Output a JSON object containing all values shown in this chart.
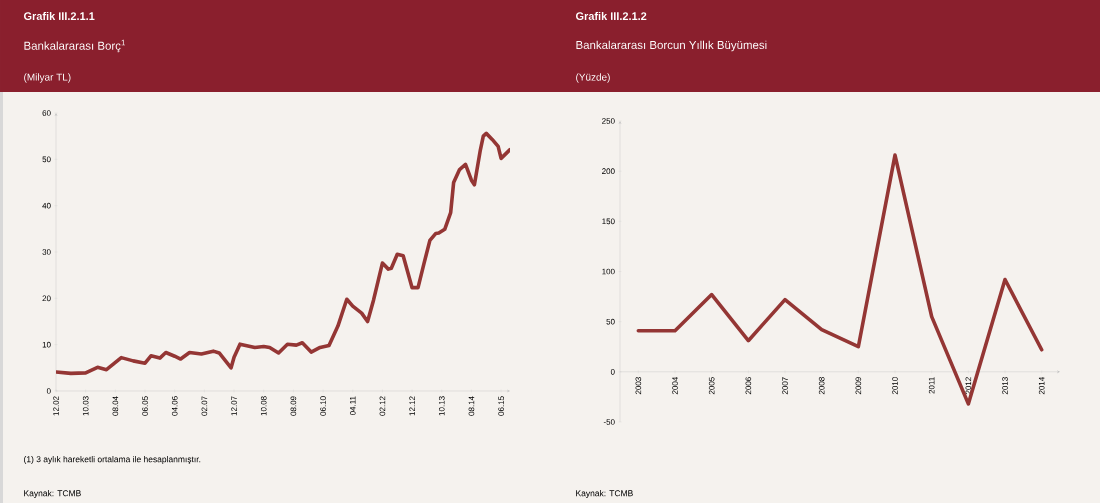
{
  "chart_data": [
    {
      "type": "line",
      "title": "Grafik III.2.1.1",
      "subtitle": "Bankalararası Borç$^{1}$",
      "ylabel": "(Milyar TL)",
      "color": "#943634",
      "x": [
        "2002-12",
        "2003-05",
        "2003-10",
        "2004-02",
        "2004-05",
        "2004-10",
        "2005-02",
        "2005-06",
        "2005-08",
        "2005-11",
        "2006-01",
        "2006-04",
        "2006-06",
        "2006-09",
        "2007-01",
        "2007-05",
        "2007-07",
        "2007-11",
        "2007-12",
        "2008-02",
        "2008-07",
        "2008-10",
        "2008-12",
        "2009-03",
        "2009-06",
        "2009-09",
        "2009-11",
        "2010-02",
        "2010-05",
        "2010-08",
        "2010-11",
        "2011-02",
        "2011-04",
        "2011-07",
        "2011-09",
        "2011-11",
        "2012-02",
        "2012-04",
        "2012-05",
        "2012-07",
        "2012-09",
        "2012-12",
        "2013-02",
        "2013-04",
        "2013-06",
        "2013-08",
        "2013-09",
        "2013-11",
        "2014-01",
        "2014-02",
        "2014-04",
        "2014-06",
        "2014-08",
        "2014-09",
        "2014-11",
        "2014-12",
        "2015-01",
        "2015-03",
        "2015-05",
        "2015-06",
        "2015-09"
      ],
      "values": [
        4.1,
        3.8,
        3.9,
        5.1,
        4.6,
        7.2,
        6.5,
        6.0,
        7.6,
        7.1,
        8.3,
        7.5,
        6.9,
        8.3,
        8.0,
        8.6,
        8.2,
        5.0,
        7.3,
        10.1,
        9.4,
        9.6,
        9.4,
        8.2,
        10.1,
        9.9,
        10.4,
        8.4,
        9.4,
        9.8,
        14.0,
        19.8,
        18.3,
        16.8,
        15.0,
        19.6,
        27.6,
        26.3,
        26.5,
        29.5,
        29.2,
        22.3,
        22.3,
        27.5,
        32.5,
        34.0,
        34.1,
        34.9,
        38.5,
        45.0,
        47.8,
        48.9,
        45.5,
        44.5,
        52.0,
        55.0,
        55.6,
        54.3,
        52.8,
        50.2,
        52.1
      ],
      "xlim": [
        "2002-12",
        "2015-09"
      ],
      "xticks": [
        {
          "value": "2002-12",
          "label": "12.02"
        },
        {
          "value": "2003-10",
          "label": "10.03"
        },
        {
          "value": "2004-08",
          "label": "08.04"
        },
        {
          "value": "2005-06",
          "label": "06.05"
        },
        {
          "value": "2006-04",
          "label": "04.06"
        },
        {
          "value": "2007-02",
          "label": "02.07"
        },
        {
          "value": "2007-12",
          "label": "12.07"
        },
        {
          "value": "2008-10",
          "label": "10.08"
        },
        {
          "value": "2009-08",
          "label": "08.09"
        },
        {
          "value": "2010-06",
          "label": "06.10"
        },
        {
          "value": "2011-04",
          "label": "04.11"
        },
        {
          "value": "2012-02",
          "label": "02.12"
        },
        {
          "value": "2012-12",
          "label": "12.12"
        },
        {
          "value": "2013-10",
          "label": "10.13"
        },
        {
          "value": "2014-08",
          "label": "08.14"
        },
        {
          "value": "2015-06",
          "label": "06.15"
        }
      ],
      "ylim": [
        0,
        60
      ],
      "yticks": [
        0,
        10,
        20,
        30,
        40,
        50,
        60
      ],
      "annotations": [
        "(1) 3 aylık hareketli ortalama ile hesaplanmıştır.",
        "Kaynak: TCMB"
      ]
    },
    {
      "type": "line",
      "title": "Grafik III.2.1.2",
      "subtitle": "Bankalararası Borcun Yıllık Büyümesi",
      "ylabel": "(Yüzde)",
      "color": "#943634",
      "categories": [
        "2003",
        "2004",
        "2005",
        "2006",
        "2007",
        "2008",
        "2009",
        "2010",
        "2011",
        "2012",
        "2013",
        "2014"
      ],
      "values": [
        41,
        41,
        77,
        31,
        72,
        42,
        25,
        216,
        55,
        -32,
        92,
        22
      ],
      "ylim": [
        -50,
        250
      ],
      "yticks": [
        -50,
        0,
        50,
        100,
        150,
        200,
        250
      ],
      "annotations": [
        "Kaynak: TCMB"
      ]
    }
  ]
}
